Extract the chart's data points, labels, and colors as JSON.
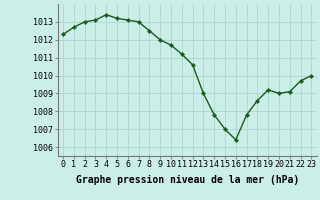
{
  "x": [
    0,
    1,
    2,
    3,
    4,
    5,
    6,
    7,
    8,
    9,
    10,
    11,
    12,
    13,
    14,
    15,
    16,
    17,
    18,
    19,
    20,
    21,
    22,
    23
  ],
  "y": [
    1012.3,
    1012.7,
    1013.0,
    1013.1,
    1013.4,
    1013.2,
    1013.1,
    1013.0,
    1012.5,
    1012.0,
    1011.7,
    1011.2,
    1010.6,
    1009.0,
    1007.8,
    1007.0,
    1006.4,
    1007.8,
    1008.6,
    1009.2,
    1009.0,
    1009.1,
    1009.7,
    1010.0
  ],
  "line_color": "#1a5c1a",
  "marker": "D",
  "marker_size": 2.2,
  "background_color": "#cceee8",
  "grid_color": "#aad8d2",
  "xlabel": "Graphe pression niveau de la mer (hPa)",
  "xlabel_fontsize": 7,
  "ylabel_ticks": [
    1006,
    1007,
    1008,
    1009,
    1010,
    1011,
    1012,
    1013
  ],
  "ylim": [
    1005.5,
    1014.0
  ],
  "xlim": [
    -0.5,
    23.5
  ],
  "xtick_labels": [
    "0",
    "1",
    "2",
    "3",
    "4",
    "5",
    "6",
    "7",
    "8",
    "9",
    "10",
    "11",
    "12",
    "13",
    "14",
    "15",
    "16",
    "17",
    "18",
    "19",
    "20",
    "21",
    "22",
    "23"
  ],
  "tick_fontsize": 6,
  "linewidth": 1.0
}
